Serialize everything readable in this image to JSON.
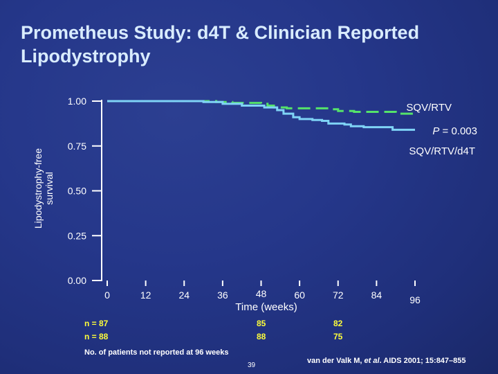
{
  "title": "Prometheus Study: d4T & Clinician Reported Lipodystrophy",
  "ylabel_line1": "Lipodystrophy-free",
  "ylabel_line2": "survival",
  "n_rows": {
    "row1_label": "n = 87",
    "row2_label": "n = 88",
    "wk48_row1": "85",
    "wk48_row2": "88",
    "wk72_row1": "82",
    "wk72_row2": "75"
  },
  "footnote": "No. of patients not reported at 96 weeks",
  "slide_number": "39",
  "citation": {
    "authors": "van der Valk M, ",
    "etal": "et al",
    "rest": ". AIDS 2001; 15:847–855"
  },
  "colors": {
    "background": "#24368a",
    "title": "#d9ecff",
    "axis": "#ffffff",
    "sqv_rtv": "#55e36a",
    "sqv_rtv_d4t": "#7fd3f6",
    "n_counts": "#ffff3a"
  },
  "chart_data": {
    "type": "line",
    "xlabel": "Time (weeks)",
    "x_ticks": [
      0,
      12,
      24,
      36,
      48,
      60,
      72,
      84,
      96
    ],
    "xlim": [
      0,
      96
    ],
    "y_ticks": [
      "0.00",
      "0.25",
      "0.50",
      "0.75",
      "1.00"
    ],
    "ylim": [
      0,
      1
    ],
    "grid": false,
    "series": [
      {
        "name": "SQV/RTV",
        "style": "dashed",
        "color": "#55e36a",
        "points": [
          [
            0,
            1.0
          ],
          [
            34,
            1.0
          ],
          [
            34,
            0.995
          ],
          [
            39,
            0.995
          ],
          [
            39,
            0.99
          ],
          [
            48,
            0.99
          ],
          [
            48,
            0.985
          ],
          [
            50,
            0.985
          ],
          [
            50,
            0.975
          ],
          [
            52,
            0.975
          ],
          [
            52,
            0.965
          ],
          [
            56,
            0.965
          ],
          [
            56,
            0.96
          ],
          [
            69,
            0.96
          ],
          [
            69,
            0.955
          ],
          [
            72,
            0.955
          ],
          [
            72,
            0.945
          ],
          [
            77,
            0.945
          ],
          [
            77,
            0.94
          ],
          [
            90,
            0.94
          ],
          [
            90,
            0.93
          ],
          [
            96,
            0.93
          ]
        ]
      },
      {
        "name": "SQV/RTV/d4T",
        "style": "solid",
        "color": "#7fd3f6",
        "points": [
          [
            0,
            1.0
          ],
          [
            30,
            1.0
          ],
          [
            30,
            0.995
          ],
          [
            36,
            0.995
          ],
          [
            36,
            0.985
          ],
          [
            42,
            0.985
          ],
          [
            42,
            0.975
          ],
          [
            49,
            0.975
          ],
          [
            49,
            0.965
          ],
          [
            53,
            0.965
          ],
          [
            53,
            0.95
          ],
          [
            55,
            0.95
          ],
          [
            55,
            0.93
          ],
          [
            58,
            0.93
          ],
          [
            58,
            0.91
          ],
          [
            60,
            0.91
          ],
          [
            60,
            0.9
          ],
          [
            64,
            0.9
          ],
          [
            64,
            0.895
          ],
          [
            67,
            0.895
          ],
          [
            67,
            0.89
          ],
          [
            69,
            0.89
          ],
          [
            69,
            0.875
          ],
          [
            74,
            0.875
          ],
          [
            74,
            0.87
          ],
          [
            76,
            0.87
          ],
          [
            76,
            0.86
          ],
          [
            80,
            0.86
          ],
          [
            80,
            0.855
          ],
          [
            89,
            0.855
          ],
          [
            89,
            0.84
          ],
          [
            96,
            0.84
          ]
        ]
      }
    ],
    "annotations": {
      "sqv_rtv": "SQV/RTV",
      "sqv_rtv_d4t": "SQV/RTV/d4T",
      "p_label": "P",
      "p_value": " = 0.003"
    }
  }
}
